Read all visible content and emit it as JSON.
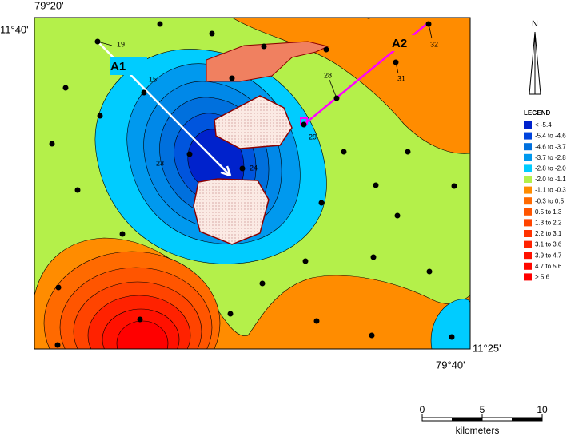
{
  "coordinates": {
    "top_left_lon": "79°20'",
    "top_left_lat": "11°40'",
    "bottom_right_lat": "11°25'",
    "bottom_right_lon": "79°40'"
  },
  "profiles": [
    "A1",
    "A2"
  ],
  "stations": [
    "19",
    "15",
    "23",
    "24",
    "28",
    "29",
    "31",
    "32"
  ],
  "north": "N",
  "legend": {
    "title": "LEGEND",
    "items": [
      {
        "label": "< -5.4",
        "color": "#0022cc"
      },
      {
        "label": "-5.4 to -4.6",
        "color": "#0044dd"
      },
      {
        "label": "-4.6 to -3.7",
        "color": "#0070dd"
      },
      {
        "label": "-3.7 to -2.8",
        "color": "#0099ee"
      },
      {
        "label": "-2.8 to -2.0",
        "color": "#00ccff"
      },
      {
        "label": "-2.0 to -1.1",
        "color": "#b4f04a"
      },
      {
        "label": "-1.1 to -0.3",
        "color": "#ff8c00"
      },
      {
        "label": "-0.3 to  0.5",
        "color": "#ff6a00"
      },
      {
        "label": "0.5  to  1.3",
        "color": "#ff5500"
      },
      {
        "label": "1.3  to  2.2",
        "color": "#ff4400"
      },
      {
        "label": "2.2  to  3.1",
        "color": "#ff3300"
      },
      {
        "label": "3.1  to  3.6",
        "color": "#ff2200"
      },
      {
        "label": "3.9  to  4.7",
        "color": "#ff1100"
      },
      {
        "label": "4.7  to  5.6",
        "color": "#ff0800"
      },
      {
        "label": ">  5.6",
        "color": "#ff0000"
      }
    ]
  },
  "scale_bar": {
    "ticks": [
      0,
      5,
      10
    ],
    "unit": "kilometers"
  }
}
